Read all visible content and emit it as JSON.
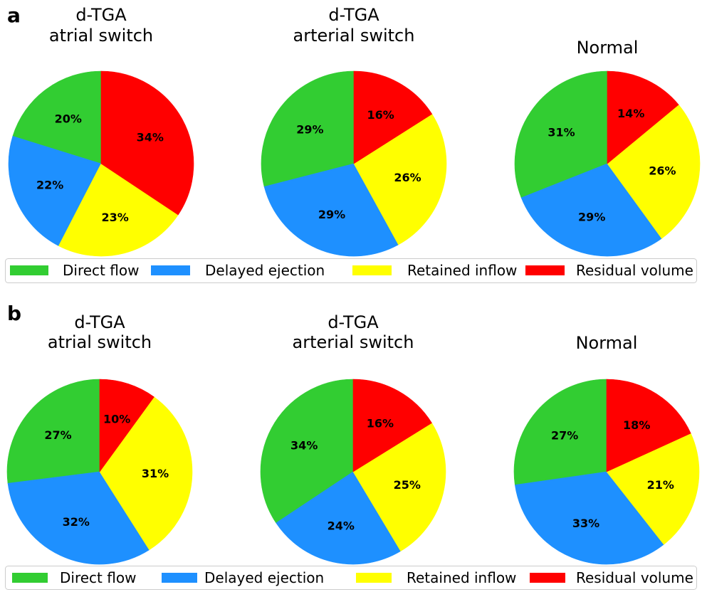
{
  "chart_data": [
    {
      "type": "pie",
      "panel_label": "a",
      "categories": [
        "Direct flow",
        "Delayed ejection",
        "Retained inflow",
        "Residual volume"
      ],
      "colors": [
        "#32cd32",
        "#1e90ff",
        "#ffff00",
        "#ff0000"
      ],
      "legend_position": "bottom",
      "pies": [
        {
          "title_lines": [
            "d-TGA",
            "atrial switch"
          ],
          "values": [
            20,
            22,
            23,
            34
          ],
          "labels": [
            "20%",
            "22%",
            "23%",
            "34%"
          ]
        },
        {
          "title_lines": [
            "d-TGA",
            "arterial switch"
          ],
          "values": [
            29,
            29,
            26,
            16
          ],
          "labels": [
            "29%",
            "29%",
            "26%",
            "16%"
          ]
        },
        {
          "title_lines": [
            "Normal"
          ],
          "values": [
            31,
            29,
            26,
            14
          ],
          "labels": [
            "31%",
            "29%",
            "26%",
            "14%"
          ]
        }
      ]
    },
    {
      "type": "pie",
      "panel_label": "b",
      "categories": [
        "Direct flow",
        "Delayed ejection",
        "Retained inflow",
        "Residual volume"
      ],
      "colors": [
        "#32cd32",
        "#1e90ff",
        "#ffff00",
        "#ff0000"
      ],
      "legend_position": "bottom",
      "pies": [
        {
          "title_lines": [
            "d-TGA",
            "atrial switch"
          ],
          "values": [
            27,
            32,
            31,
            10
          ],
          "labels": [
            "27%",
            "32%",
            "31%",
            "10%"
          ]
        },
        {
          "title_lines": [
            "d-TGA",
            "arterial switch"
          ],
          "values": [
            34,
            24,
            25,
            16
          ],
          "labels": [
            "34%",
            "24%",
            "25%",
            "16%"
          ]
        },
        {
          "title_lines": [
            "Normal"
          ],
          "values": [
            27,
            33,
            21,
            18
          ],
          "labels": [
            "27%",
            "33%",
            "21%",
            "18%"
          ]
        }
      ]
    }
  ]
}
